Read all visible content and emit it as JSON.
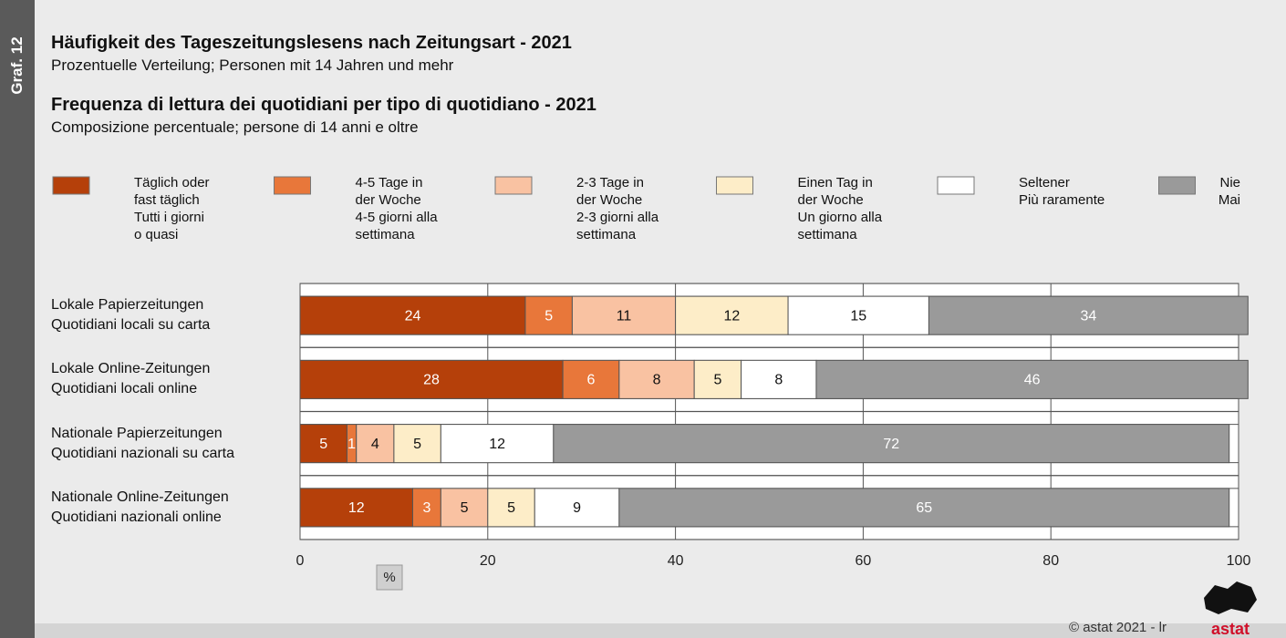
{
  "chart_data": {
    "type": "stacked_barh",
    "side_label": "Graf. 12",
    "title": "Häufigkeit des Tageszeitungslesens nach Zeitungsart - 2021",
    "subtitle": "Prozentuelle Verteilung; Personen mit 14 Jahren und mehr",
    "title_it": "Frequenza di lettura dei quotidiani per tipo di quotidiano - 2021",
    "subtitle_it": "Composizione percentuale; persone di 14 anni e oltre",
    "x_label": "%",
    "footer": "© astat 2021 - lr",
    "logo": "astat",
    "categories": [
      "Lokale Papierzeitungen\nQuotidiani locali su carta",
      "Lokale Online-Zeitungen\nQuotidiani locali online",
      "Nationale Papierzeitungen\nQuotidiani nazionali su carta",
      "Nationale Online-Zeitungen\nQuotidiani nazionali online"
    ],
    "series": [
      {
        "name": "Täglich oder\nfast täglich\nTutti i giorni\no quasi",
        "color": "#b5400a",
        "values": [
          24,
          28,
          5,
          12
        ]
      },
      {
        "name": "4-5 Tage in\nder Woche\n4-5 giorni alla\nsettimana",
        "color": "#e8773a",
        "values": [
          5,
          6,
          1,
          3
        ]
      },
      {
        "name": "2-3 Tage in\nder Woche\n2-3 giorni alla\nsettimana",
        "color": "#f9c2a2",
        "values": [
          11,
          8,
          4,
          5
        ]
      },
      {
        "name": "Einen Tag in\nder Woche\nUn giorno alla\nsettimana",
        "color": "#fdedc8",
        "values": [
          12,
          5,
          5,
          5
        ]
      },
      {
        "name": "Seltener\nPiù raramente",
        "color": "#ffffff",
        "values": [
          15,
          8,
          12,
          9
        ]
      },
      {
        "name": "Nie\nMai",
        "color": "#9a9a9a",
        "values": [
          34,
          46,
          72,
          65
        ]
      }
    ],
    "xlim": [
      0,
      100
    ],
    "xticks": [
      0,
      20,
      40,
      60,
      80,
      100
    ],
    "grid": true
  }
}
